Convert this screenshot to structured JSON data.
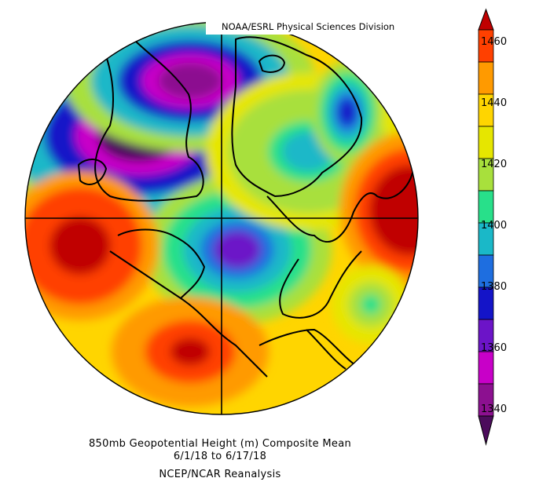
{
  "credit": "NOAA/ESRL Physical Sciences Division",
  "caption": {
    "line1": "850mb Geopotential Height (m) Composite Mean",
    "line2": "6/1/18  to 6/17/18",
    "line3": "NCEP/NCAR Reanalysis"
  },
  "colorbar": {
    "labels": [
      "1460",
      "1440",
      "1420",
      "1400",
      "1380",
      "1360",
      "1340"
    ],
    "colors": [
      "#c00000",
      "#ff4000",
      "#ff9a00",
      "#ffd500",
      "#e6e600",
      "#a8e03c",
      "#28e08a",
      "#1ab8c8",
      "#1e6ee0",
      "#1414c8",
      "#6c14c8",
      "#c800c8",
      "#8c1090",
      "#4c0c5c"
    ]
  },
  "map": {
    "projection": "north-polar-stereographic",
    "field_min": 1340,
    "field_max": 1460,
    "background_level": 1430,
    "features": [
      {
        "name": "lobe-eurasia-low",
        "center": [
          0.29,
          0.29
        ],
        "r": [
          0.42,
          0.26
        ],
        "level": 1345
      },
      {
        "name": "lobe-greenland-high",
        "center": [
          0.42,
          0.15
        ],
        "r": [
          0.32,
          0.18
        ],
        "level": 1350
      },
      {
        "name": "lobe-central-low",
        "center": [
          0.54,
          0.58
        ],
        "r": [
          0.24,
          0.19
        ],
        "level": 1372
      },
      {
        "name": "lobe-hudson-low",
        "center": [
          0.72,
          0.33
        ],
        "r": [
          0.26,
          0.2
        ],
        "level": 1400
      },
      {
        "name": "lobe-baffin-low",
        "center": [
          0.82,
          0.23
        ],
        "r": [
          0.09,
          0.13
        ],
        "level": 1375
      },
      {
        "name": "lobe-pacific-high",
        "center": [
          0.14,
          0.57
        ],
        "r": [
          0.2,
          0.19
        ],
        "level": 1462
      },
      {
        "name": "lobe-alaska-high",
        "center": [
          0.42,
          0.84
        ],
        "r": [
          0.2,
          0.14
        ],
        "level": 1455
      },
      {
        "name": "lobe-atlantic-high",
        "center": [
          0.98,
          0.48
        ],
        "r": [
          0.18,
          0.2
        ],
        "level": 1465
      },
      {
        "name": "lobe-europe-green",
        "center": [
          0.88,
          0.72
        ],
        "r": [
          0.1,
          0.1
        ],
        "level": 1405
      }
    ]
  }
}
